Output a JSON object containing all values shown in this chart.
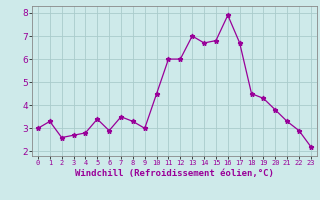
{
  "x": [
    0,
    1,
    2,
    3,
    4,
    5,
    6,
    7,
    8,
    9,
    10,
    11,
    12,
    13,
    14,
    15,
    16,
    17,
    18,
    19,
    20,
    21,
    22,
    23
  ],
  "y": [
    3.0,
    3.3,
    2.6,
    2.7,
    2.8,
    3.4,
    2.9,
    3.5,
    3.3,
    3.0,
    4.5,
    6.0,
    6.0,
    7.0,
    6.7,
    6.8,
    7.9,
    6.7,
    4.5,
    4.3,
    3.8,
    3.3,
    2.9,
    2.2
  ],
  "line_color": "#990099",
  "marker": "*",
  "marker_size": 3.5,
  "bg_color": "#ceeaea",
  "grid_color": "#aacccc",
  "xlabel": "Windchill (Refroidissement éolien,°C)",
  "xlabel_color": "#990099",
  "ylim": [
    1.8,
    8.3
  ],
  "xlim": [
    -0.5,
    23.5
  ],
  "yticks": [
    2,
    3,
    4,
    5,
    6,
    7,
    8
  ],
  "xticks": [
    0,
    1,
    2,
    3,
    4,
    5,
    6,
    7,
    8,
    9,
    10,
    11,
    12,
    13,
    14,
    15,
    16,
    17,
    18,
    19,
    20,
    21,
    22,
    23
  ]
}
